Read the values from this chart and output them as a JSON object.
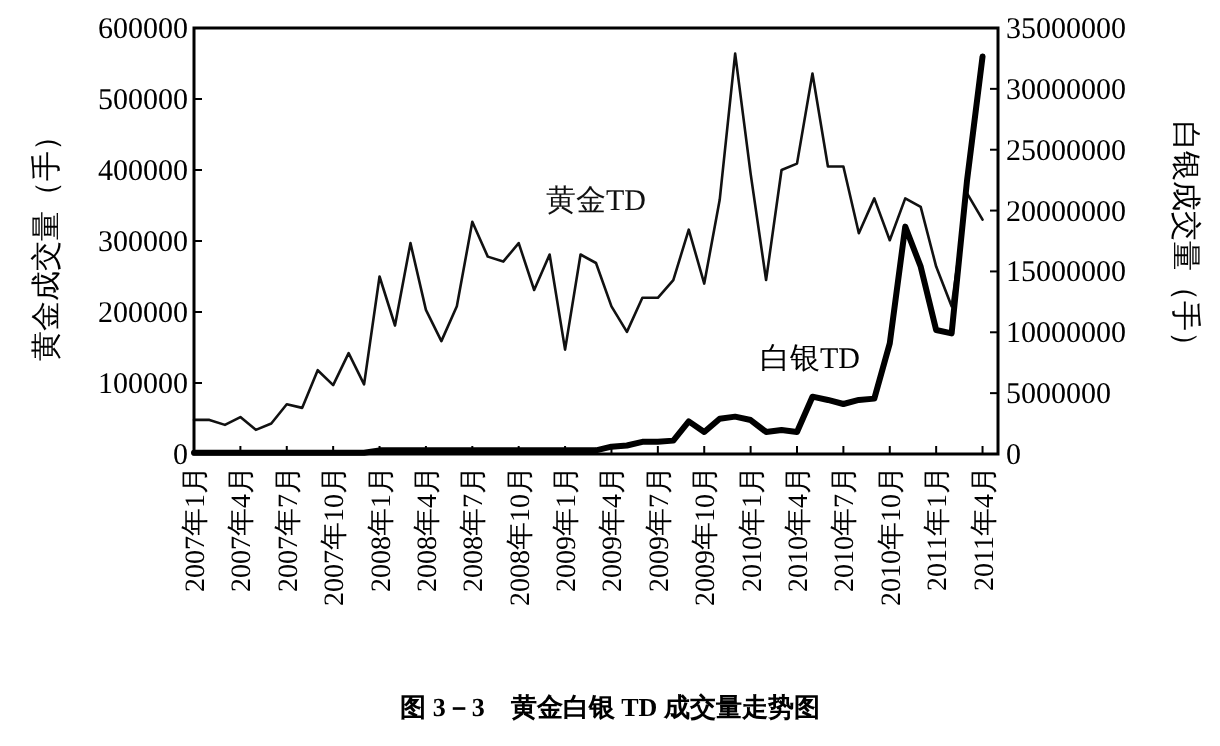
{
  "chart_data": {
    "type": "line",
    "title": "图 3－3　黄金白银 TD 成交量走势图",
    "ylabel": "黄金成交量（手）",
    "y2label": "白银成交量（手）",
    "x": [
      "2007-01",
      "2007-02",
      "2007-03",
      "2007-04",
      "2007-05",
      "2007-06",
      "2007-07",
      "2007-08",
      "2007-09",
      "2007-10",
      "2007-11",
      "2007-12",
      "2008-01",
      "2008-02",
      "2008-03",
      "2008-04",
      "2008-05",
      "2008-06",
      "2008-07",
      "2008-08",
      "2008-09",
      "2008-10",
      "2008-11",
      "2008-12",
      "2009-01",
      "2009-02",
      "2009-03",
      "2009-04",
      "2009-05",
      "2009-06",
      "2009-07",
      "2009-08",
      "2009-09",
      "2009-10",
      "2009-11",
      "2009-12",
      "2010-01",
      "2010-02",
      "2010-03",
      "2010-04",
      "2010-05",
      "2010-06",
      "2010-07",
      "2010-08",
      "2010-09",
      "2010-10",
      "2010-11",
      "2010-12",
      "2011-01",
      "2011-02",
      "2011-03",
      "2011-04"
    ],
    "series": [
      {
        "name": "黄金TD",
        "color": "#111111",
        "values": [
          48000,
          48000,
          41000,
          52000,
          34000,
          43000,
          70000,
          65000,
          118000,
          97000,
          142000,
          98000,
          250000,
          181000,
          297000,
          203000,
          159000,
          208000,
          327000,
          278000,
          271000,
          297000,
          231000,
          281000,
          147000,
          281000,
          269000,
          208000,
          172000,
          220000,
          220000,
          245000,
          316000,
          240000,
          358000,
          564000,
          395000,
          245000,
          400000,
          409000,
          536000,
          405000,
          405000,
          311000,
          360000,
          301000,
          360000,
          348000,
          264000,
          208000,
          367000,
          330000
        ]
      },
      {
        "name": "白银TD",
        "color": "#000000",
        "axis": "y2",
        "values": [
          100000,
          100000,
          100000,
          100000,
          100000,
          100000,
          100000,
          100000,
          100000,
          100000,
          100000,
          100000,
          300000,
          300000,
          300000,
          300000,
          300000,
          300000,
          300000,
          300000,
          300000,
          300000,
          300000,
          300000,
          300000,
          300000,
          300000,
          600000,
          700000,
          1000000,
          1000000,
          1100000,
          2680000,
          1810000,
          2900000,
          3070000,
          2790000,
          1810000,
          1970000,
          1810000,
          4710000,
          4440000,
          4110000,
          4440000,
          4550000,
          9090000,
          18680000,
          15390000,
          10190000,
          9910000,
          22510000,
          32650000
        ]
      }
    ],
    "xlim": [
      "2007-01",
      "2011-05"
    ],
    "xticks": [
      {
        "value": "2007-01",
        "label": "2007年1月"
      },
      {
        "value": "2007-04",
        "label": "2007年4月"
      },
      {
        "value": "2007-07",
        "label": "2007年7月"
      },
      {
        "value": "2007-10",
        "label": "2007年10月"
      },
      {
        "value": "2008-01",
        "label": "2008年1月"
      },
      {
        "value": "2008-04",
        "label": "2008年4月"
      },
      {
        "value": "2008-07",
        "label": "2008年7月"
      },
      {
        "value": "2008-10",
        "label": "2008年10月"
      },
      {
        "value": "2009-01",
        "label": "2009年1月"
      },
      {
        "value": "2009-04",
        "label": "2009年4月"
      },
      {
        "value": "2009-07",
        "label": "2009年7月"
      },
      {
        "value": "2009-10",
        "label": "2009年10月"
      },
      {
        "value": "2010-01",
        "label": "2010年1月"
      },
      {
        "value": "2010-04",
        "label": "2010年4月"
      },
      {
        "value": "2010-07",
        "label": "2010年7月"
      },
      {
        "value": "2010-10",
        "label": "2010年10月"
      },
      {
        "value": "2011-01",
        "label": "2011年1月"
      },
      {
        "value": "2011-04",
        "label": "2011年4月"
      }
    ],
    "ylim": [
      0,
      600000
    ],
    "yticks": [
      0,
      100000,
      200000,
      300000,
      400000,
      500000,
      600000
    ],
    "y2lim": [
      0,
      35000000
    ],
    "y2ticks": [
      0,
      5000000,
      10000000,
      15000000,
      20000000,
      25000000,
      30000000,
      35000000
    ],
    "line_style": "solid",
    "marker": "none",
    "grid": false,
    "legend": false
  }
}
